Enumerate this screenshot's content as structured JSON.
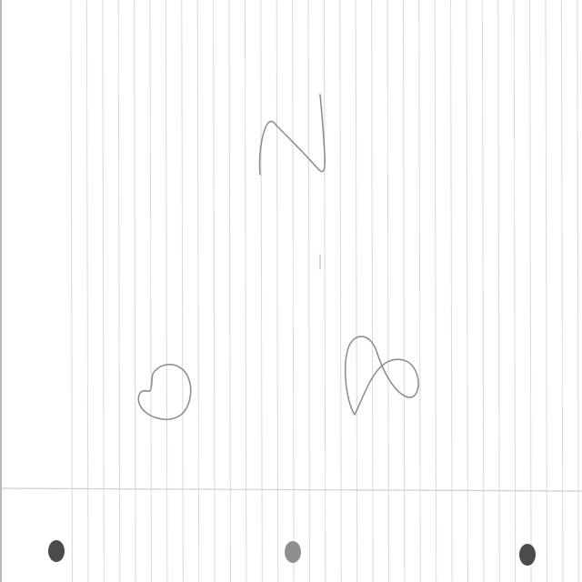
{
  "scene": {
    "kind": "photo of lined notebook paper with pencil doodles",
    "paper_color": "#ffffff",
    "rule_color": "#d9d9df",
    "pencil_color": "#7d7d82",
    "hole_colors": [
      "#4a4a4f",
      "#8e8e93",
      "#4a4a4f"
    ]
  },
  "doodles": [
    {
      "name": "doodle-z"
    },
    {
      "name": "doodle-o"
    },
    {
      "name": "doodle-figure-eight"
    }
  ]
}
